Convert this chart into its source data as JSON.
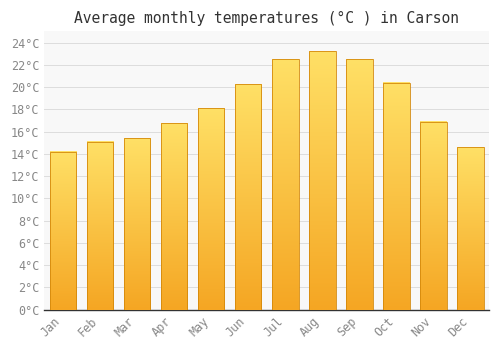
{
  "title": "Average monthly temperatures (°C ) in Carson",
  "months": [
    "Jan",
    "Feb",
    "Mar",
    "Apr",
    "May",
    "Jun",
    "Jul",
    "Aug",
    "Sep",
    "Oct",
    "Nov",
    "Dec"
  ],
  "values": [
    14.2,
    15.1,
    15.4,
    16.8,
    18.1,
    20.3,
    22.5,
    23.2,
    22.5,
    20.4,
    16.9,
    14.6
  ],
  "bar_color_bottom": "#F5A623",
  "bar_color_top": "#FFE066",
  "bar_edge_color": "#D4880A",
  "background_color": "#FFFFFF",
  "plot_bg_color": "#F8F8F8",
  "grid_color": "#DDDDDD",
  "ylim": [
    0,
    25
  ],
  "ytick_step": 2,
  "title_fontsize": 10.5,
  "tick_fontsize": 8.5,
  "tick_label_color": "#888888",
  "title_color": "#333333"
}
